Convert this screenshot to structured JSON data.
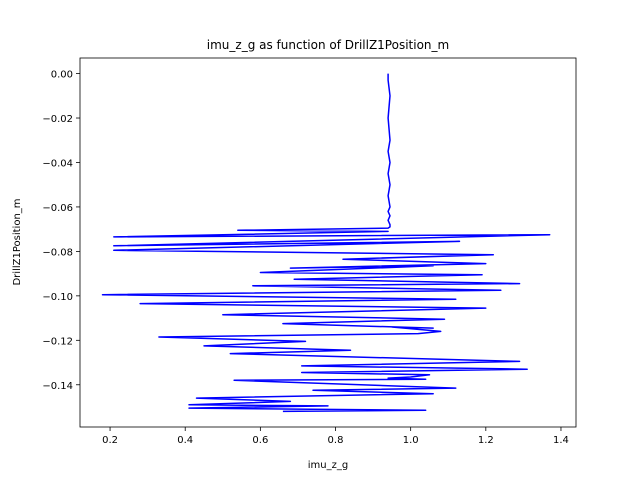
{
  "chart_data": {
    "type": "line",
    "title": "imu_z_g as function of DrillZ1Position_m",
    "xlabel": "imu_z_g",
    "ylabel": "DrillZ1Position_m",
    "xlim": [
      0.12,
      1.44
    ],
    "ylim": [
      -0.159,
      0.007
    ],
    "grid": false,
    "line_color": "#0000ff",
    "xticks": [
      {
        "value": 0.2,
        "label": "0.2"
      },
      {
        "value": 0.4,
        "label": "0.4"
      },
      {
        "value": 0.6,
        "label": "0.6"
      },
      {
        "value": 0.8,
        "label": "0.8"
      },
      {
        "value": 1.0,
        "label": "1.0"
      },
      {
        "value": 1.2,
        "label": "1.2"
      },
      {
        "value": 1.4,
        "label": "1.4"
      }
    ],
    "yticks": [
      {
        "value": 0.0,
        "label": "0.00"
      },
      {
        "value": -0.02,
        "label": "−0.02"
      },
      {
        "value": -0.04,
        "label": "−0.04"
      },
      {
        "value": -0.06,
        "label": "−0.06"
      },
      {
        "value": -0.08,
        "label": "−0.08"
      },
      {
        "value": -0.1,
        "label": "−0.10"
      },
      {
        "value": -0.12,
        "label": "−0.12"
      },
      {
        "value": -0.14,
        "label": "−0.14"
      }
    ],
    "series": [
      {
        "x": [
          0.94,
          0.94,
          0.945,
          0.94,
          0.945,
          0.94,
          0.945,
          0.94,
          0.945,
          0.94,
          0.945,
          0.94,
          0.945,
          0.94,
          0.945,
          0.945,
          0.94,
          0.54,
          0.94,
          0.21,
          1.37,
          0.21,
          1.13,
          0.21,
          1.22,
          0.82,
          1.2,
          0.68,
          1.06,
          0.6,
          1.19,
          0.69,
          1.29,
          0.58,
          1.24,
          0.18,
          1.12,
          0.28,
          1.2,
          0.5,
          1.09,
          0.66,
          1.06,
          0.95,
          1.08,
          1.02,
          0.33,
          0.72,
          0.45,
          0.84,
          0.52,
          1.29,
          0.71,
          1.31,
          0.71,
          1.05,
          1.0,
          0.94,
          1.04,
          0.53,
          1.12,
          0.74,
          1.06,
          0.43,
          0.68,
          0.41,
          0.78,
          0.41,
          1.04,
          0.66
        ]
      }
    ],
    "y": [
      0.0,
      -0.003,
      -0.01,
      -0.02,
      -0.03,
      -0.035,
      -0.04,
      -0.045,
      -0.05,
      -0.055,
      -0.06,
      -0.062,
      -0.064,
      -0.066,
      -0.068,
      -0.069,
      -0.0695,
      -0.0705,
      -0.071,
      -0.0735,
      -0.0725,
      -0.0775,
      -0.0755,
      -0.0795,
      -0.0815,
      -0.0835,
      -0.0855,
      -0.0875,
      -0.0865,
      -0.0895,
      -0.0905,
      -0.0925,
      -0.0945,
      -0.0955,
      -0.0975,
      -0.0995,
      -0.1015,
      -0.1035,
      -0.1055,
      -0.1085,
      -0.1105,
      -0.1125,
      -0.1145,
      -0.114,
      -0.116,
      -0.117,
      -0.1185,
      -0.1205,
      -0.1225,
      -0.1245,
      -0.126,
      -0.1295,
      -0.1315,
      -0.133,
      -0.1345,
      -0.1355,
      -0.1365,
      -0.137,
      -0.1375,
      -0.138,
      -0.1415,
      -0.1425,
      -0.144,
      -0.146,
      -0.1475,
      -0.149,
      -0.1495,
      -0.1505,
      -0.1515,
      -0.152
    ]
  }
}
